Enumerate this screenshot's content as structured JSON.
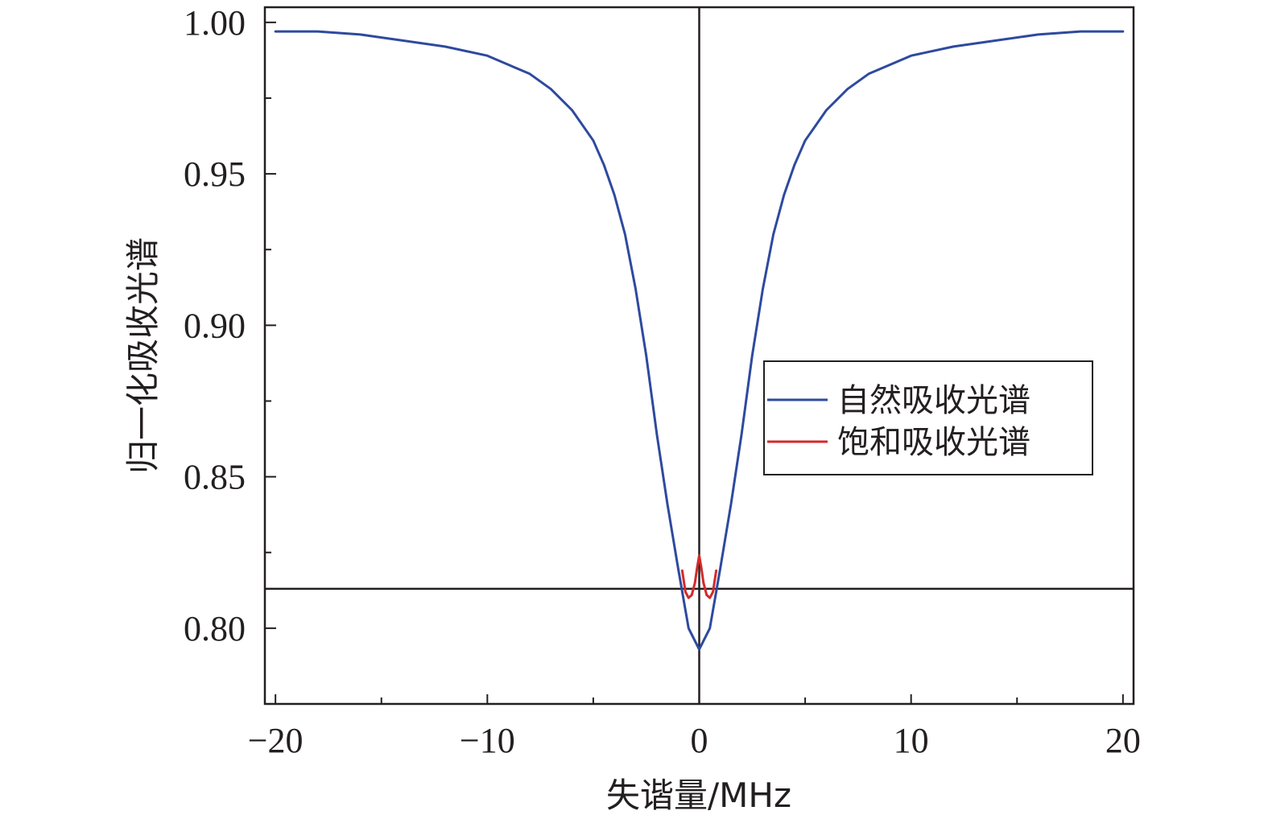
{
  "chart_data": {
    "type": "line",
    "title": "",
    "xlabel": "失谐量/MHz",
    "ylabel": "归一化吸收光谱",
    "xlim": [
      -20.5,
      20.5
    ],
    "ylim": [
      0.775,
      1.005
    ],
    "x_ticks": [
      -20,
      -15,
      -10,
      -5,
      0,
      5,
      10,
      15,
      20
    ],
    "x_tick_labels": [
      "−20",
      "",
      "−10",
      "",
      "0",
      "",
      "10",
      "",
      "20"
    ],
    "y_ticks": [
      0.8,
      0.825,
      0.85,
      0.875,
      0.9,
      0.925,
      0.95,
      0.975,
      1.0
    ],
    "y_tick_labels": [
      "0.80",
      "",
      "0.85",
      "",
      "0.90",
      "",
      "0.95",
      "",
      "1.00"
    ],
    "grid": false,
    "legend_position": "right",
    "reference_lines": {
      "vertical_x": 0,
      "horizontal_y": 0.813
    },
    "series": [
      {
        "name": "自然吸收光谱",
        "color": "#2e4a9e",
        "x": [
          -20,
          -18,
          -16,
          -14,
          -12,
          -10,
          -9,
          -8,
          -7,
          -6,
          -5,
          -4.5,
          -4,
          -3.5,
          -3,
          -2.5,
          -2,
          -1.5,
          -1,
          -0.5,
          0,
          0.5,
          1,
          1.5,
          2,
          2.5,
          3,
          3.5,
          4,
          4.5,
          5,
          6,
          7,
          8,
          9,
          10,
          12,
          14,
          16,
          18,
          20
        ],
        "y": [
          0.997,
          0.997,
          0.996,
          0.994,
          0.992,
          0.989,
          0.986,
          0.983,
          0.978,
          0.971,
          0.961,
          0.953,
          0.943,
          0.93,
          0.912,
          0.89,
          0.864,
          0.841,
          0.82,
          0.8,
          0.793,
          0.8,
          0.82,
          0.841,
          0.864,
          0.89,
          0.912,
          0.93,
          0.943,
          0.953,
          0.961,
          0.971,
          0.978,
          0.983,
          0.986,
          0.989,
          0.992,
          0.994,
          0.996,
          0.997,
          0.997
        ]
      },
      {
        "name": "饱和吸收光谱",
        "color": "#d42a2a",
        "x": [
          -0.8,
          -0.65,
          -0.5,
          -0.35,
          -0.2,
          -0.1,
          0,
          0.1,
          0.2,
          0.35,
          0.5,
          0.65,
          0.8
        ],
        "y": [
          0.819,
          0.812,
          0.81,
          0.811,
          0.815,
          0.82,
          0.824,
          0.82,
          0.815,
          0.811,
          0.81,
          0.812,
          0.819
        ]
      }
    ]
  }
}
